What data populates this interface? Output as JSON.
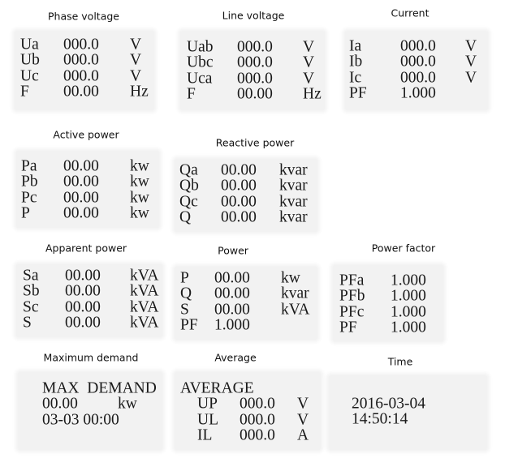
{
  "panels": [
    {
      "title": "Phase voltage",
      "rows": [
        [
          "Ua",
          "000.0",
          "V"
        ],
        [
          "Ub",
          "000.0",
          "V"
        ],
        [
          "Uc",
          "000.0",
          "V"
        ],
        [
          "F",
          "00.00",
          "Hz"
        ]
      ]
    },
    {
      "title": "Line voltage",
      "rows": [
        [
          "Uab",
          "000.0",
          "V"
        ],
        [
          "Ubc",
          "000.0",
          "V"
        ],
        [
          "Uca",
          "000.0",
          "V"
        ],
        [
          "F",
          "00.00",
          "Hz"
        ]
      ]
    },
    {
      "title": "Current",
      "rows": [
        [
          "Ia",
          "000.0",
          "V"
        ],
        [
          "Ib",
          "000.0",
          "V"
        ],
        [
          "Ic",
          "000.0",
          "V"
        ],
        [
          "PF",
          "1.000"
        ]
      ]
    },
    {
      "title": "Active power",
      "rows": [
        [
          "Pa",
          "00.00",
          "kw"
        ],
        [
          "Pb",
          "00.00",
          "kw"
        ],
        [
          "Pc",
          "00.00",
          "kw"
        ],
        [
          "P",
          "00.00",
          "kw"
        ]
      ]
    },
    {
      "title": "Reactive power",
      "rows": [
        [
          "Qa",
          "00.00",
          "kvar"
        ],
        [
          "Qb",
          "00.00",
          "kvar"
        ],
        [
          "Qc",
          "00.00",
          "kvar"
        ],
        [
          "Q",
          "00.00",
          "kvar"
        ]
      ]
    },
    {
      "title": "Apparent power",
      "rows": [
        [
          "Sa",
          "00.00",
          "kVA"
        ],
        [
          "Sb",
          "00.00",
          "kVA"
        ],
        [
          "Sc",
          "00.00",
          "kVA"
        ],
        [
          "S",
          "00.00",
          "kVA"
        ]
      ]
    },
    {
      "title": "Power",
      "rows": [
        [
          "P",
          "00.00",
          "kw"
        ],
        [
          "Q",
          "00.00",
          "kvar"
        ],
        [
          "S",
          "00.00",
          "kVA"
        ],
        [
          "PF",
          "1.000"
        ]
      ]
    },
    {
      "title": "Power factor",
      "rows": [
        [
          "PFa",
          "1.000"
        ],
        [
          "PFb",
          "1.000"
        ],
        [
          "PFc",
          "1.000"
        ],
        [
          "PF",
          "1.000"
        ]
      ]
    },
    {
      "title": "Maximum demand",
      "rows": [
        [
          "MAX  DEMAND"
        ],
        [
          "00.00",
          "kw"
        ],
        [
          "03-03 00:00"
        ]
      ]
    },
    {
      "title": "Average",
      "rows": [
        [
          "AVERAGE"
        ],
        [
          "UP",
          "000.0",
          "V"
        ],
        [
          "UL",
          "000.0",
          "V"
        ],
        [
          "IL",
          "000.0",
          "A"
        ]
      ]
    },
    {
      "title": "Time",
      "rows": [
        [
          "2016-03-04"
        ],
        [
          "14:50:14"
        ]
      ]
    }
  ]
}
